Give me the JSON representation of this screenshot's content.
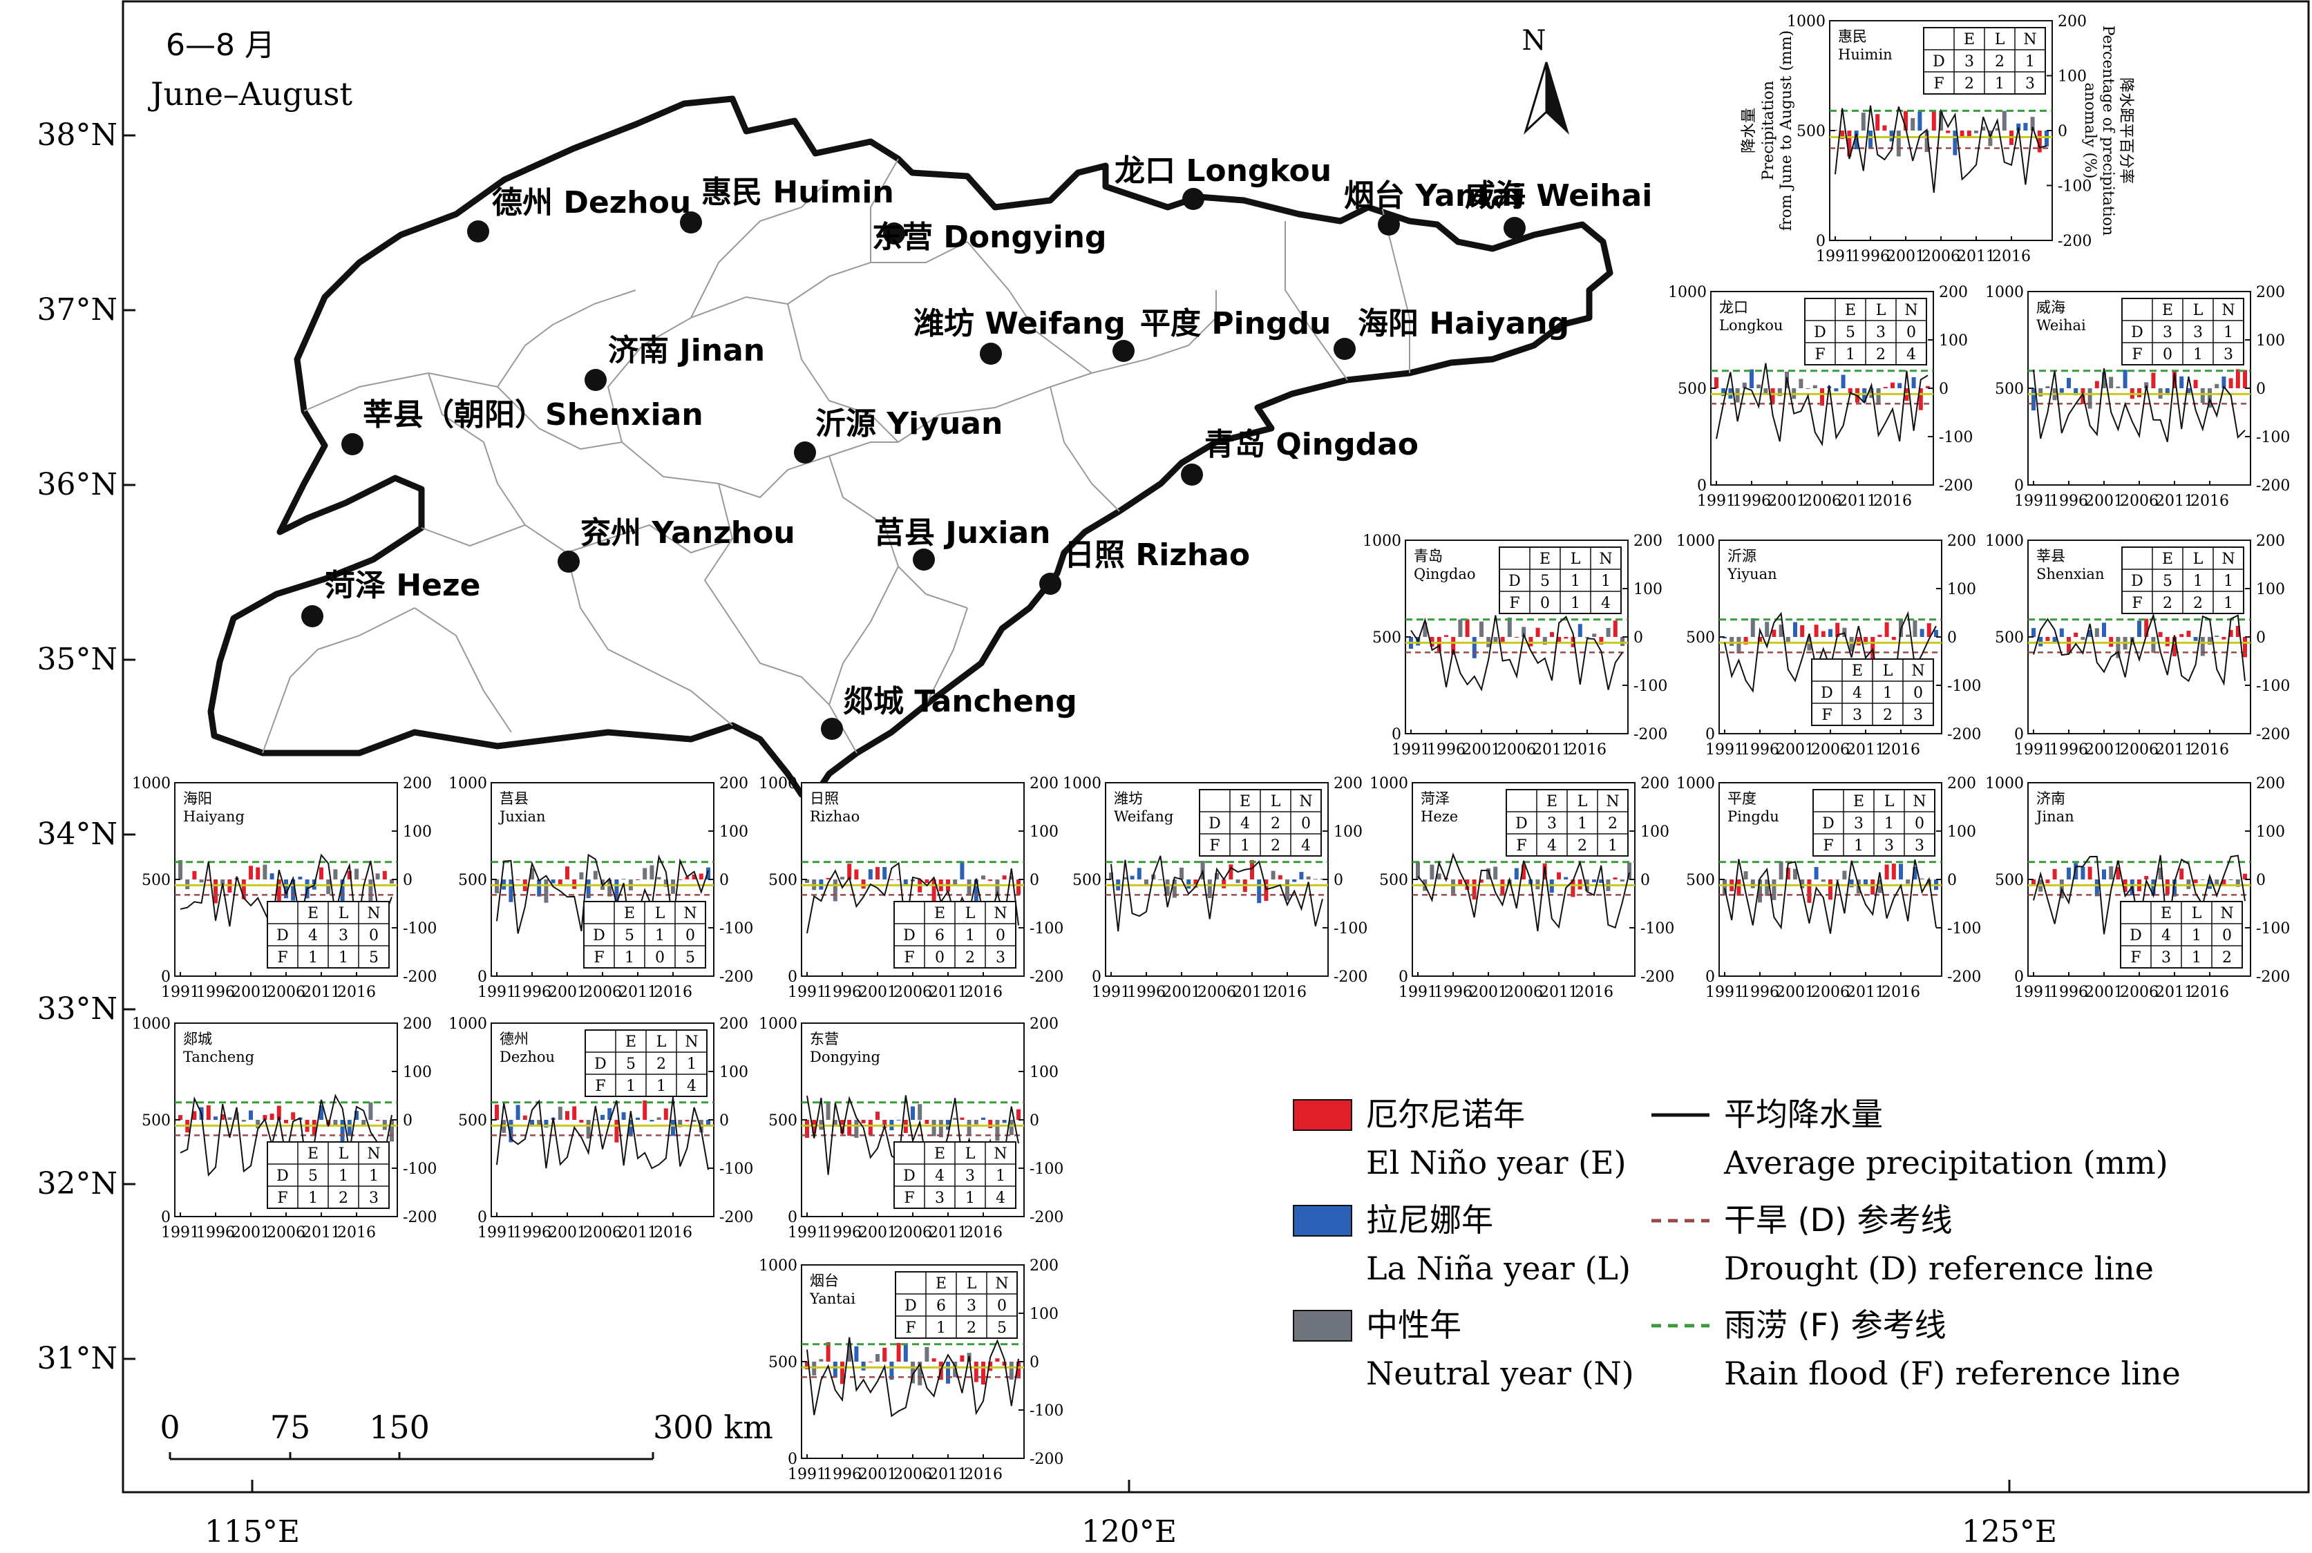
{
  "map": {
    "season_cn": "6—8 月",
    "season_en": "June–August",
    "north_label": "N",
    "lat_ticks": [
      "38°N",
      "37°N",
      "36°N",
      "35°N",
      "34°N",
      "33°N",
      "32°N",
      "31°N"
    ],
    "lon_ticks": [
      "115°E",
      "120°E",
      "125°E"
    ],
    "scale_ticks": [
      "0",
      "75",
      "150",
      "300 km"
    ]
  },
  "stations": [
    {
      "id": "dezhou",
      "label": "德州 Dezhou"
    },
    {
      "id": "huimin",
      "label": "惠民 Huimin"
    },
    {
      "id": "dongying",
      "label": "东营 Dongying"
    },
    {
      "id": "longkou",
      "label": "龙口 Longkou"
    },
    {
      "id": "yantai",
      "label": "烟台 Yantai"
    },
    {
      "id": "weihai",
      "label": "威海 Weihai"
    },
    {
      "id": "jinan",
      "label": "济南 Jinan"
    },
    {
      "id": "weifang",
      "label": "潍坊 Weifang"
    },
    {
      "id": "pingdu",
      "label": "平度 Pingdu"
    },
    {
      "id": "haiyang",
      "label": "海阳 Haiyang"
    },
    {
      "id": "shenxian",
      "label": "莘县（朝阳）Shenxian"
    },
    {
      "id": "yiyuan",
      "label": "沂源 Yiyuan"
    },
    {
      "id": "qingdao",
      "label": "青岛 Qingdao"
    },
    {
      "id": "yanzhou",
      "label": "兖州 Yanzhou"
    },
    {
      "id": "juxian",
      "label": "莒县 Juxian"
    },
    {
      "id": "rizhao",
      "label": "日照 Rizhao"
    },
    {
      "id": "heze",
      "label": "菏泽 Heze"
    },
    {
      "id": "tancheng",
      "label": "郯城 Tancheng"
    }
  ],
  "inset_axes": {
    "left_ticks": [
      "1000",
      "500",
      "0"
    ],
    "right_ticks": [
      "200",
      "100",
      "0",
      "-100",
      "-200"
    ],
    "x_ticks": [
      "1991",
      "1996",
      "2001",
      "2006",
      "2011",
      "2016"
    ],
    "ylabel_left_cn": "降水量",
    "ylabel_left_en_1": "Precipitation",
    "ylabel_left_en_2": "from June to August (mm)",
    "ylabel_right_cn": "降水距平百分率",
    "ylabel_right_en_1": "Percentage of precipitation",
    "ylabel_right_en_2": "anomaly (%)"
  },
  "table_header": [
    "E",
    "L",
    "N"
  ],
  "legend": {
    "el_nino_cn": "厄尔尼诺年",
    "el_nino_en": "El Niño year (E)",
    "la_nina_cn": "拉尼娜年",
    "la_nina_en": "La Niña year (L)",
    "neutral_cn": "中性年",
    "neutral_en": "Neutral year (N)",
    "avg_cn": "平均降水量",
    "avg_en": "Average precipitation (mm)",
    "drought_cn": "干旱 (D) 参考线",
    "drought_en": "Drought (D) reference line",
    "flood_cn": "雨涝 (F) 参考线",
    "flood_en": "Rain flood (F) reference line"
  },
  "colors": {
    "el_nino": "#e0212b",
    "la_nina": "#2b62b8",
    "neutral": "#6e737c",
    "drought_line": "#9b4a4a",
    "flood_line": "#3a9a3a",
    "mean_line": "#c8c81e"
  },
  "chart_data": [
    {
      "type": "bar",
      "station_cn": "惠民",
      "station_en": "Huimin",
      "table": {
        "D": [
          3,
          2,
          1
        ],
        "F": [
          2,
          1,
          3
        ]
      }
    },
    {
      "type": "bar",
      "station_cn": "龙口",
      "station_en": "Longkou",
      "table": {
        "D": [
          5,
          3,
          0
        ],
        "F": [
          1,
          2,
          4
        ]
      }
    },
    {
      "type": "bar",
      "station_cn": "威海",
      "station_en": "Weihai",
      "table": {
        "D": [
          3,
          3,
          1
        ],
        "F": [
          0,
          1,
          3
        ]
      }
    },
    {
      "type": "bar",
      "station_cn": "青岛",
      "station_en": "Qingdao",
      "table": {
        "D": [
          5,
          1,
          1
        ],
        "F": [
          0,
          1,
          4
        ]
      }
    },
    {
      "type": "bar",
      "station_cn": "沂源",
      "station_en": "Yiyuan",
      "table": {
        "D": [
          4,
          1,
          0
        ],
        "F": [
          3,
          2,
          3
        ]
      }
    },
    {
      "type": "bar",
      "station_cn": "莘县",
      "station_en": "Shenxian",
      "table": {
        "D": [
          5,
          1,
          1
        ],
        "F": [
          2,
          2,
          1
        ]
      }
    },
    {
      "type": "bar",
      "station_cn": "海阳",
      "station_en": "Haiyang",
      "table": {
        "D": [
          4,
          3,
          0
        ],
        "F": [
          1,
          1,
          5
        ]
      }
    },
    {
      "type": "bar",
      "station_cn": "莒县",
      "station_en": "Juxian",
      "table": {
        "D": [
          5,
          1,
          0
        ],
        "F": [
          1,
          0,
          5
        ]
      }
    },
    {
      "type": "bar",
      "station_cn": "日照",
      "station_en": "Rizhao",
      "table": {
        "D": [
          6,
          1,
          0
        ],
        "F": [
          0,
          2,
          3
        ]
      }
    },
    {
      "type": "bar",
      "station_cn": "潍坊",
      "station_en": "Weifang",
      "table": {
        "D": [
          4,
          2,
          0
        ],
        "F": [
          1,
          2,
          4
        ]
      }
    },
    {
      "type": "bar",
      "station_cn": "菏泽",
      "station_en": "Heze",
      "table": {
        "D": [
          3,
          1,
          2
        ],
        "F": [
          4,
          2,
          1
        ]
      }
    },
    {
      "type": "bar",
      "station_cn": "平度",
      "station_en": "Pingdu",
      "table": {
        "D": [
          3,
          1,
          0
        ],
        "F": [
          1,
          3,
          3
        ]
      }
    },
    {
      "type": "bar",
      "station_cn": "济南",
      "station_en": "Jinan",
      "table": {
        "D": [
          4,
          1,
          0
        ],
        "F": [
          3,
          1,
          2
        ]
      }
    },
    {
      "type": "bar",
      "station_cn": "郯城",
      "station_en": "Tancheng",
      "table": {
        "D": [
          5,
          1,
          1
        ],
        "F": [
          1,
          2,
          3
        ]
      }
    },
    {
      "type": "bar",
      "station_cn": "德州",
      "station_en": "Dezhou",
      "table": {
        "D": [
          5,
          2,
          1
        ],
        "F": [
          1,
          1,
          4
        ]
      }
    },
    {
      "type": "bar",
      "station_cn": "东营",
      "station_en": "Dongying",
      "table": {
        "D": [
          4,
          3,
          1
        ],
        "F": [
          3,
          1,
          4
        ]
      }
    },
    {
      "type": "bar",
      "station_cn": "烟台",
      "station_en": "Yantai",
      "table": {
        "D": [
          6,
          3,
          0
        ],
        "F": [
          1,
          2,
          5
        ]
      }
    }
  ]
}
